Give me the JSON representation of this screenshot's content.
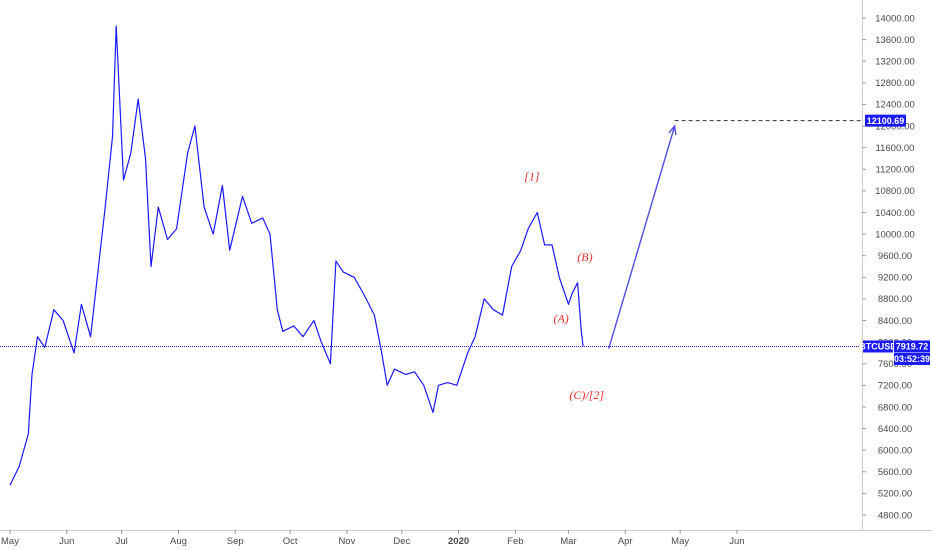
{
  "chart_data": {
    "type": "line",
    "symbol": "BTCUSD",
    "ylim": [
      4600,
      14400
    ],
    "y_ticks": [
      4800,
      5200,
      5600,
      6000,
      6400,
      6800,
      7200,
      7600,
      8000,
      8400,
      8800,
      9200,
      9600,
      10000,
      10400,
      10800,
      11200,
      11600,
      12000,
      12400,
      12800,
      13200,
      13600,
      14000
    ],
    "y_tick_labels": [
      "4800.00",
      "5200.00",
      "5600.00",
      "6000.00",
      "6400.00",
      "6800.00",
      "7200.00",
      "7600.00",
      "8000.00",
      "8400.00",
      "8800.00",
      "9200.00",
      "9600.00",
      "10000.00",
      "10400.00",
      "10800.00",
      "11200.00",
      "11600.00",
      "12000.00",
      "12400.00",
      "12800.00",
      "13200.00",
      "13600.00",
      "14000.00"
    ],
    "x_labels": [
      "May",
      "Jun",
      "Jul",
      "Aug",
      "Sep",
      "Oct",
      "Nov",
      "Dec",
      "2020",
      "Feb",
      "Mar",
      "Apr",
      "May",
      "Jun"
    ],
    "x_range": [
      "2019-05-01",
      "2020-06-30"
    ],
    "series": [
      {
        "color": "#1a1aff",
        "x": [
          "2019-05-01",
          "2019-05-06",
          "2019-05-11",
          "2019-05-13",
          "2019-05-16",
          "2019-05-20",
          "2019-05-25",
          "2019-05-30",
          "2019-06-05",
          "2019-06-09",
          "2019-06-14",
          "2019-06-18",
          "2019-06-22",
          "2019-06-26",
          "2019-06-28",
          "2019-07-02",
          "2019-07-06",
          "2019-07-10",
          "2019-07-14",
          "2019-07-17",
          "2019-07-21",
          "2019-07-26",
          "2019-07-31",
          "2019-08-06",
          "2019-08-10",
          "2019-08-15",
          "2019-08-20",
          "2019-08-25",
          "2019-08-29",
          "2019-09-05",
          "2019-09-10",
          "2019-09-16",
          "2019-09-20",
          "2019-09-24",
          "2019-09-27",
          "2019-10-03",
          "2019-10-08",
          "2019-10-14",
          "2019-10-18",
          "2019-10-23",
          "2019-10-26",
          "2019-10-30",
          "2019-11-05",
          "2019-11-10",
          "2019-11-16",
          "2019-11-20",
          "2019-11-23",
          "2019-11-27",
          "2019-12-03",
          "2019-12-08",
          "2019-12-13",
          "2019-12-18",
          "2019-12-21",
          "2019-12-26",
          "2019-12-31",
          "2020-01-06",
          "2020-01-10",
          "2020-01-15",
          "2020-01-20",
          "2020-01-25",
          "2020-01-30",
          "2020-02-04",
          "2020-02-08",
          "2020-02-13",
          "2020-02-17",
          "2020-02-21",
          "2020-02-25",
          "2020-03-01",
          "2020-03-03",
          "2020-03-06",
          "2020-03-08",
          "2020-03-09"
        ],
        "y": [
          5350,
          5700,
          6300,
          7400,
          8100,
          7900,
          8600,
          8400,
          7800,
          8700,
          8100,
          9300,
          10500,
          11800,
          13850,
          11000,
          11500,
          12500,
          11400,
          9400,
          10500,
          9900,
          10100,
          11500,
          12000,
          10500,
          10000,
          10900,
          9700,
          10700,
          10200,
          10300,
          10000,
          8600,
          8200,
          8300,
          8100,
          8400,
          8000,
          7600,
          9500,
          9300,
          9200,
          8900,
          8500,
          7800,
          7200,
          7500,
          7400,
          7450,
          7200,
          6700,
          7200,
          7250,
          7200,
          7800,
          8100,
          8800,
          8600,
          8500,
          9400,
          9700,
          10100,
          10400,
          9800,
          9800,
          9200,
          8700,
          8900,
          9100,
          8200,
          7920
        ]
      }
    ],
    "last_price": "7919.72",
    "countdown": "03:52:39",
    "target_price": "12100.69",
    "target_level": 12100.69,
    "projection": {
      "from_date": "2020-03-23",
      "from_price": 7880,
      "to_date": "2020-04-28",
      "to_price": 12000
    },
    "annotations": [
      {
        "text": "[1]",
        "date": "2020-02-10",
        "price": 10990,
        "color": "#e8302a"
      },
      {
        "text": "(B)",
        "date": "2020-03-10",
        "price": 9500,
        "color": "#e8302a"
      },
      {
        "text": "(A)",
        "date": "2020-02-26",
        "price": 8360,
        "color": "#e8302a"
      },
      {
        "text": "(C)/[2]",
        "date": "2020-03-11",
        "price": 6950,
        "color": "#e8302a"
      }
    ],
    "grid": false,
    "legend": "none"
  },
  "colors": {
    "line": "#1a1aff",
    "price_tag": "#1a1aff",
    "target_tag": "#1a1aff",
    "annotation": "#e8302a",
    "projection": "#5050e0"
  }
}
